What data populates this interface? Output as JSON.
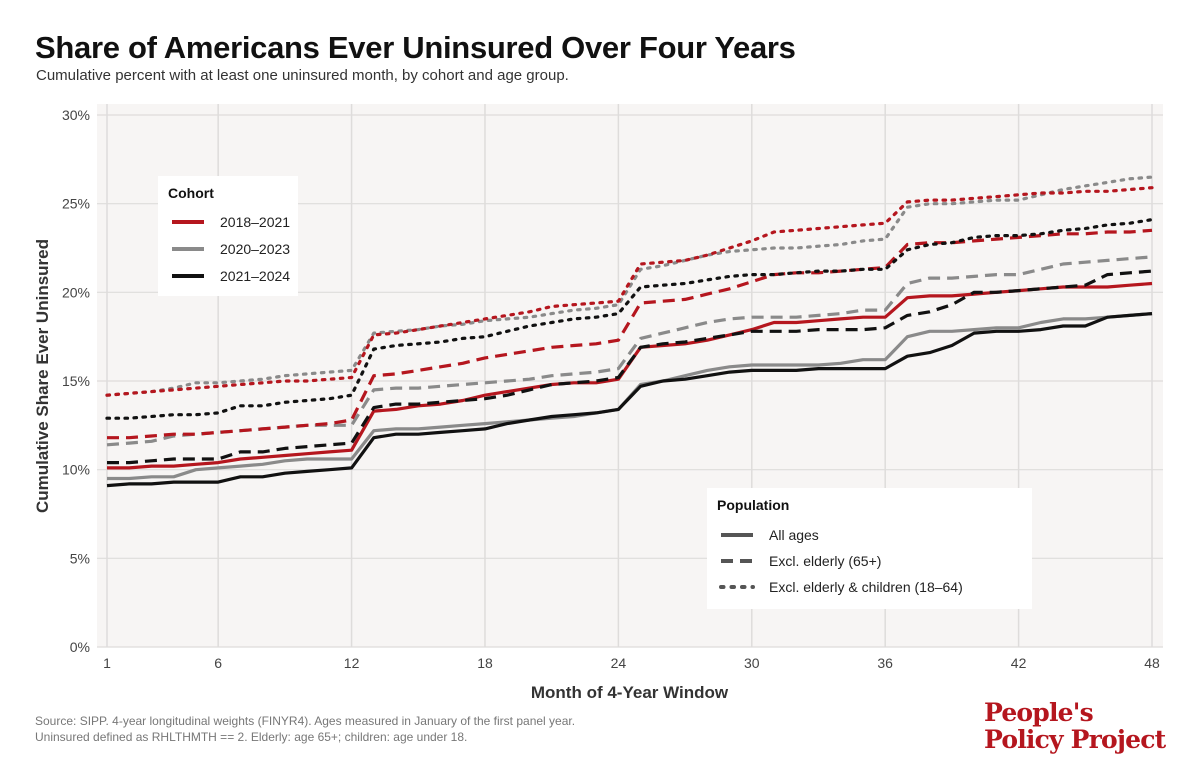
{
  "title": "Share of Americans Ever Uninsured Over Four Years",
  "subtitle": "Cumulative percent with at least one uninsured month, by cohort and age group.",
  "source": {
    "line1": "Source: SIPP. 4-year longitudinal weights (FINYR4). Ages measured in January of the first panel year.",
    "line2": "Uninsured defined as RHLTHMTH == 2. Elderly: age 65+; children: age under 18."
  },
  "logo": {
    "line1": "People's",
    "line2": "Policy Project"
  },
  "colors": {
    "2018–2021": "#b5161e",
    "2020–2023": "#8a8a8a",
    "2021–2024": "#111111",
    "panel": "#f7f5f4",
    "grid": "#dedcdb",
    "brand": "#b5161e"
  },
  "chart_data": {
    "type": "line",
    "xlabel": "Month of 4-Year Window",
    "ylabel": "Cumulative Share Ever Uninsured",
    "xlim": [
      1,
      48
    ],
    "ylim": [
      0,
      30
    ],
    "x_ticks": [
      1,
      6,
      12,
      18,
      24,
      30,
      36,
      42,
      48
    ],
    "y_ticks": [
      0,
      5,
      10,
      15,
      20,
      25,
      30
    ],
    "y_tick_labels": [
      "0%",
      "5%",
      "10%",
      "15%",
      "20%",
      "25%",
      "30%"
    ],
    "grid": true,
    "legends": [
      {
        "title": "Cohort",
        "placement": "top-left",
        "entries": [
          {
            "label": "2018–2021",
            "color": "#b5161e",
            "dash": "solid"
          },
          {
            "label": "2020–2023",
            "color": "#8a8a8a",
            "dash": "solid"
          },
          {
            "label": "2021–2024",
            "color": "#111111",
            "dash": "solid"
          }
        ]
      },
      {
        "title": "Population",
        "placement": "bottom-right",
        "entries": [
          {
            "label": "All ages",
            "color": "#555555",
            "dash": "solid"
          },
          {
            "label": "Excl. elderly (65+)",
            "color": "#555555",
            "dash": "dashed"
          },
          {
            "label": "Excl. elderly & children (18–64)",
            "color": "#555555",
            "dash": "dotted"
          }
        ]
      }
    ],
    "series": [
      {
        "cohort": "2018–2021",
        "population": "All ages",
        "dash": "solid",
        "color": "#b5161e",
        "values": [
          10.1,
          10.1,
          10.2,
          10.2,
          10.3,
          10.4,
          10.6,
          10.7,
          10.8,
          10.9,
          11.0,
          11.1,
          13.3,
          13.4,
          13.6,
          13.7,
          13.9,
          14.2,
          14.4,
          14.6,
          14.8,
          14.9,
          14.9,
          15.1,
          16.9,
          17.0,
          17.1,
          17.3,
          17.6,
          17.9,
          18.3,
          18.3,
          18.4,
          18.5,
          18.6,
          18.6,
          19.7,
          19.8,
          19.8,
          19.9,
          20.0,
          20.1,
          20.2,
          20.3,
          20.3,
          20.3,
          20.4,
          20.5
        ]
      },
      {
        "cohort": "2018–2021",
        "population": "Excl. elderly (65+)",
        "dash": "dashed",
        "color": "#b5161e",
        "values": [
          11.8,
          11.8,
          11.9,
          12.0,
          12.0,
          12.1,
          12.2,
          12.3,
          12.4,
          12.5,
          12.6,
          12.8,
          15.3,
          15.4,
          15.6,
          15.8,
          16.0,
          16.3,
          16.5,
          16.7,
          16.9,
          17.0,
          17.1,
          17.3,
          19.4,
          19.5,
          19.6,
          19.9,
          20.2,
          20.6,
          21.0,
          21.1,
          21.1,
          21.2,
          21.3,
          21.4,
          22.7,
          22.8,
          22.8,
          22.9,
          23.0,
          23.1,
          23.2,
          23.3,
          23.3,
          23.4,
          23.4,
          23.5
        ]
      },
      {
        "cohort": "2018–2021",
        "population": "Excl. elderly & children (18–64)",
        "dash": "dotted",
        "color": "#b5161e",
        "values": [
          14.2,
          14.3,
          14.4,
          14.5,
          14.6,
          14.7,
          14.8,
          14.9,
          15.0,
          15.0,
          15.1,
          15.2,
          17.6,
          17.7,
          17.9,
          18.1,
          18.3,
          18.5,
          18.7,
          18.9,
          19.2,
          19.3,
          19.4,
          19.5,
          21.6,
          21.7,
          21.8,
          22.1,
          22.5,
          22.9,
          23.4,
          23.5,
          23.6,
          23.7,
          23.8,
          23.9,
          25.1,
          25.2,
          25.2,
          25.3,
          25.4,
          25.5,
          25.6,
          25.6,
          25.7,
          25.7,
          25.8,
          25.9
        ]
      },
      {
        "cohort": "2020–2023",
        "population": "All ages",
        "dash": "solid",
        "color": "#8a8a8a",
        "values": [
          9.5,
          9.5,
          9.6,
          9.6,
          10.0,
          10.1,
          10.2,
          10.3,
          10.5,
          10.6,
          10.6,
          10.6,
          12.2,
          12.3,
          12.3,
          12.4,
          12.5,
          12.6,
          12.7,
          12.8,
          12.9,
          13.0,
          13.2,
          13.4,
          14.8,
          15.0,
          15.3,
          15.6,
          15.8,
          15.9,
          15.9,
          15.9,
          15.9,
          16.0,
          16.2,
          16.2,
          17.5,
          17.8,
          17.8,
          17.9,
          18.0,
          18.0,
          18.3,
          18.5,
          18.5,
          18.6,
          18.7,
          18.8
        ]
      },
      {
        "cohort": "2020–2023",
        "population": "Excl. elderly (65+)",
        "dash": "dashed",
        "color": "#8a8a8a",
        "values": [
          11.4,
          11.5,
          11.6,
          11.9,
          12.0,
          12.1,
          12.2,
          12.3,
          12.4,
          12.5,
          12.5,
          12.5,
          14.5,
          14.6,
          14.6,
          14.7,
          14.8,
          14.9,
          15.0,
          15.1,
          15.3,
          15.4,
          15.5,
          15.7,
          17.4,
          17.7,
          18.0,
          18.3,
          18.5,
          18.6,
          18.6,
          18.6,
          18.7,
          18.8,
          19.0,
          19.0,
          20.5,
          20.8,
          20.8,
          20.9,
          21.0,
          21.0,
          21.3,
          21.6,
          21.7,
          21.8,
          21.9,
          22.0
        ]
      },
      {
        "cohort": "2020–2023",
        "population": "Excl. elderly & children (18–64)",
        "dash": "dotted",
        "color": "#8a8a8a",
        "values": [
          14.2,
          14.3,
          14.4,
          14.6,
          14.9,
          14.9,
          15.0,
          15.1,
          15.3,
          15.4,
          15.5,
          15.6,
          17.7,
          17.8,
          17.9,
          18.1,
          18.2,
          18.4,
          18.5,
          18.6,
          18.8,
          19.0,
          19.1,
          19.3,
          21.3,
          21.5,
          21.8,
          22.1,
          22.3,
          22.4,
          22.5,
          22.5,
          22.6,
          22.7,
          22.9,
          23.0,
          24.8,
          25.0,
          25.0,
          25.1,
          25.2,
          25.2,
          25.5,
          25.8,
          26.0,
          26.2,
          26.4,
          26.5
        ]
      },
      {
        "cohort": "2021–2024",
        "population": "All ages",
        "dash": "solid",
        "color": "#111111",
        "values": [
          9.1,
          9.2,
          9.2,
          9.3,
          9.3,
          9.3,
          9.6,
          9.6,
          9.8,
          9.9,
          10.0,
          10.1,
          11.8,
          12.0,
          12.0,
          12.1,
          12.2,
          12.3,
          12.6,
          12.8,
          13.0,
          13.1,
          13.2,
          13.4,
          14.7,
          15.0,
          15.1,
          15.3,
          15.5,
          15.6,
          15.6,
          15.6,
          15.7,
          15.7,
          15.7,
          15.7,
          16.4,
          16.6,
          17.0,
          17.7,
          17.8,
          17.8,
          17.9,
          18.1,
          18.1,
          18.6,
          18.7,
          18.8
        ]
      },
      {
        "cohort": "2021–2024",
        "population": "Excl. elderly (65+)",
        "dash": "dashed",
        "color": "#111111",
        "values": [
          10.4,
          10.4,
          10.5,
          10.6,
          10.6,
          10.6,
          11.0,
          11.0,
          11.2,
          11.3,
          11.4,
          11.5,
          13.5,
          13.7,
          13.7,
          13.8,
          13.9,
          14.0,
          14.2,
          14.5,
          14.8,
          14.9,
          15.0,
          15.2,
          16.9,
          17.1,
          17.2,
          17.4,
          17.6,
          17.8,
          17.8,
          17.8,
          17.9,
          17.9,
          17.9,
          18.0,
          18.7,
          18.9,
          19.3,
          20.0,
          20.0,
          20.1,
          20.2,
          20.3,
          20.4,
          21.0,
          21.1,
          21.2
        ]
      },
      {
        "cohort": "2021–2024",
        "population": "Excl. elderly & children (18–64)",
        "dash": "dotted",
        "color": "#111111",
        "values": [
          12.9,
          12.9,
          13.0,
          13.1,
          13.1,
          13.2,
          13.6,
          13.6,
          13.8,
          13.9,
          14.0,
          14.2,
          16.8,
          17.0,
          17.1,
          17.2,
          17.4,
          17.5,
          17.8,
          18.1,
          18.3,
          18.5,
          18.6,
          18.8,
          20.3,
          20.4,
          20.5,
          20.7,
          20.9,
          21.0,
          21.0,
          21.1,
          21.2,
          21.2,
          21.3,
          21.3,
          22.4,
          22.7,
          22.8,
          23.1,
          23.2,
          23.2,
          23.3,
          23.5,
          23.6,
          23.8,
          23.9,
          24.1
        ]
      }
    ]
  }
}
